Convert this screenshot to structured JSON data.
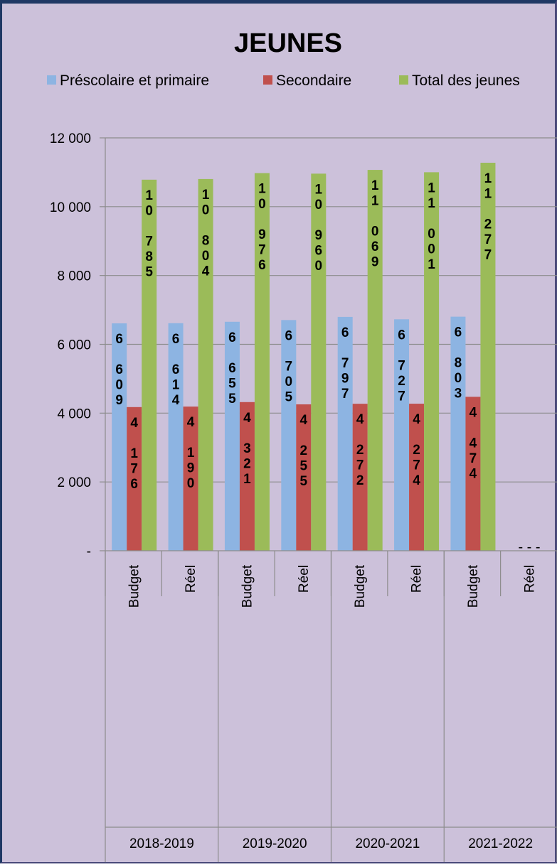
{
  "chart_data": {
    "type": "bar",
    "title": "JEUNES",
    "legend_position": "top",
    "y_axis": {
      "min": 0,
      "max": 12000,
      "step": 2000,
      "tick_labels": [
        "-",
        "2 000",
        "4 000",
        "6 000",
        "8 000",
        "10 000",
        "12 000"
      ]
    },
    "gridlines": true,
    "categories": [
      "Budget",
      "Réel",
      "Budget",
      "Réel",
      "Budget",
      "Réel",
      "Budget",
      "Réel"
    ],
    "groups": [
      {
        "label": "2018-2019",
        "span": 2
      },
      {
        "label": "2019-2020",
        "span": 2
      },
      {
        "label": "2020-2021",
        "span": 2
      },
      {
        "label": "2021-2022",
        "span": 2
      }
    ],
    "series": [
      {
        "name": "Préscolaire et primaire",
        "color": "#8db4e2",
        "values": [
          6609,
          6614,
          6655,
          6705,
          6797,
          6727,
          6803,
          null
        ],
        "labels": [
          "6 609",
          "6 614",
          "6 655",
          "6 705",
          "6 797",
          "6 727",
          "6 803",
          ""
        ]
      },
      {
        "name": "Secondaire",
        "color": "#c0504d",
        "values": [
          4176,
          4190,
          4321,
          4255,
          4272,
          4274,
          4474,
          null
        ],
        "labels": [
          "4 176",
          "4 190",
          "4 321",
          "4 255",
          "4 272",
          "4 274",
          "4 474",
          ""
        ]
      },
      {
        "name": "Total des jeunes",
        "color": "#9bbb59",
        "values": [
          10785,
          10804,
          10976,
          10960,
          11069,
          11001,
          11277,
          null
        ],
        "labels": [
          "10 785",
          "10 804",
          "10 976",
          "10 960",
          "11 069",
          "11 001",
          "11 277",
          ""
        ]
      }
    ],
    "missing_marker": "- - -"
  }
}
